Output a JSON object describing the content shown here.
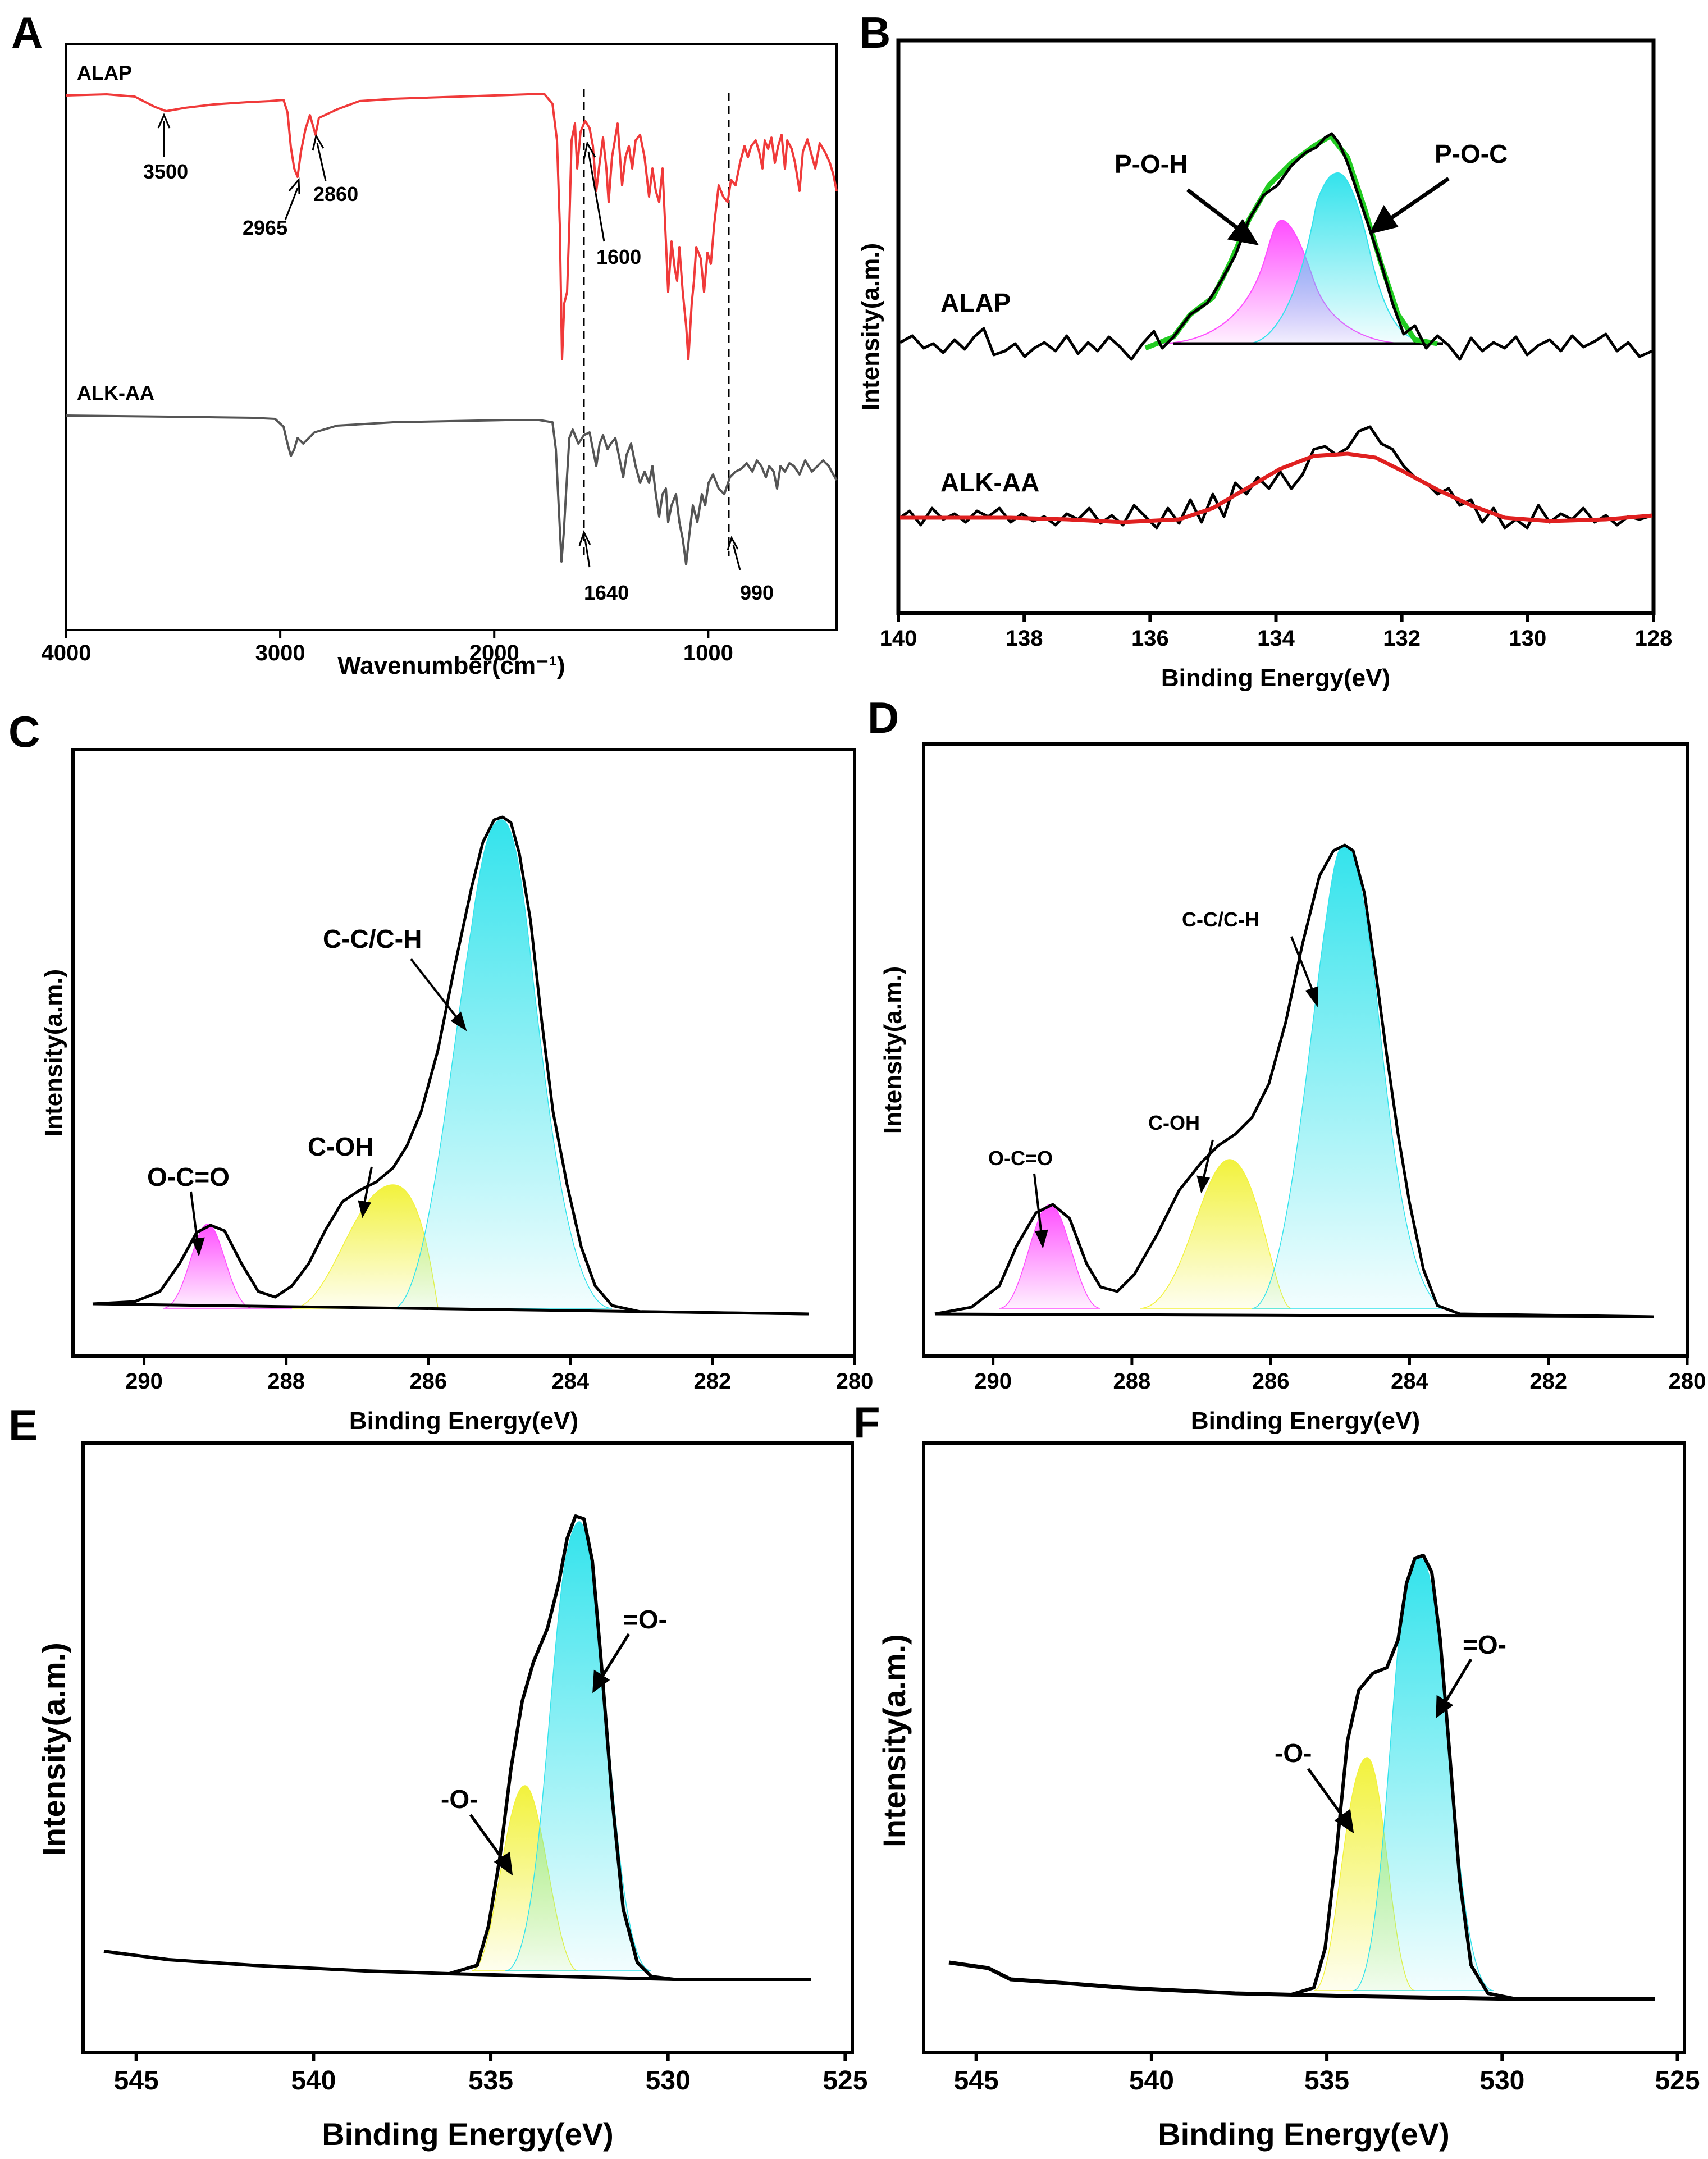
{
  "colors": {
    "alap_red": "#f03a3a",
    "alkaa_gray": "#555555",
    "magenta": "#ff4dff",
    "cyan": "#33e3ec",
    "yellow": "#f2f23c",
    "green": "#22cc22",
    "fit_red": "#e02020"
  },
  "chart_data": [
    {
      "panel": "A",
      "type": "line",
      "xlabel": "Wavenumber(cm⁻¹)",
      "ylabel": "",
      "xlim": [
        4000,
        400
      ],
      "xticks": [
        4000,
        3000,
        2000,
        1000
      ],
      "series": [
        {
          "name": "ALAP",
          "color": "#f03a3a"
        },
        {
          "name": "ALK-AA",
          "color": "#555555"
        }
      ],
      "reference_lines": [
        1640,
        990
      ],
      "annotations": [
        "3500",
        "2965",
        "2860",
        "1600",
        "1640",
        "990"
      ]
    },
    {
      "panel": "B",
      "type": "line",
      "xlabel": "Binding Energy(eV)",
      "ylabel": "Intensity(a.m.)",
      "xlim": [
        140,
        128
      ],
      "xticks": [
        140,
        138,
        136,
        134,
        132,
        130,
        128
      ],
      "series": [
        {
          "name": "ALAP"
        },
        {
          "name": "ALK-AA"
        }
      ],
      "peaks": [
        {
          "name": "P-O-H",
          "center": 134.0,
          "color": "#ff4dff"
        },
        {
          "name": "P-O-C",
          "center": 133.0,
          "color": "#33e3ec"
        }
      ]
    },
    {
      "panel": "C",
      "type": "area",
      "xlabel": "Binding Energy(eV)",
      "ylabel": "Intensity(a.m.)",
      "xlim": [
        291,
        280
      ],
      "xticks": [
        290,
        288,
        286,
        284,
        282,
        280
      ],
      "peaks": [
        {
          "name": "O-C=O",
          "center": 288.9,
          "height": 0.17
        },
        {
          "name": "C-OH",
          "center": 286.4,
          "height": 0.24
        },
        {
          "name": "C-C/C-H",
          "center": 284.8,
          "height": 1.0
        }
      ]
    },
    {
      "panel": "D",
      "type": "area",
      "xlabel": "Binding Energy(eV)",
      "ylabel": "Intensity(a.m.)",
      "xlim": [
        291,
        280
      ],
      "xticks": [
        290,
        288,
        286,
        284,
        282,
        280
      ],
      "peaks": [
        {
          "name": "O-C=O",
          "center": 288.8,
          "height": 0.22
        },
        {
          "name": "C-OH",
          "center": 286.3,
          "height": 0.33
        },
        {
          "name": "C-C/C-H",
          "center": 284.8,
          "height": 1.0
        }
      ]
    },
    {
      "panel": "E",
      "type": "area",
      "xlabel": "Binding Energy(eV)",
      "ylabel": "Intensity(a.m.)",
      "xlim": [
        546.5,
        524.8
      ],
      "xticks": [
        545,
        540,
        535,
        530,
        525
      ],
      "peaks": [
        {
          "name": "-O-",
          "center": 533.4,
          "height": 0.48
        },
        {
          "name": "=O-",
          "center": 532.1,
          "height": 0.9
        }
      ]
    },
    {
      "panel": "F",
      "type": "area",
      "xlabel": "Binding Energy(eV)",
      "ylabel": "Intensity(a.m.)",
      "xlim": [
        546.5,
        524.8
      ],
      "xticks": [
        545,
        540,
        535,
        530,
        525
      ],
      "peaks": [
        {
          "name": "-O-",
          "center": 533.4,
          "height": 0.55
        },
        {
          "name": "=O-",
          "center": 532.0,
          "height": 0.92
        }
      ]
    }
  ]
}
